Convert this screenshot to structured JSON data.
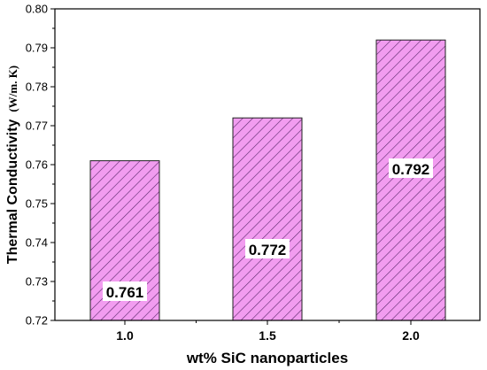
{
  "chart_data": {
    "type": "bar",
    "categories": [
      "1.0",
      "1.5",
      "2.0"
    ],
    "values": [
      0.761,
      0.772,
      0.792
    ],
    "data_labels": [
      "0.761",
      "0.772",
      "0.792"
    ],
    "title": "",
    "xlabel": "wt% SiC nanoparticles",
    "ylabel": "Thermal Conductivity",
    "ylabel_unit": "(W/m. K)",
    "ylim": [
      0.72,
      0.8
    ],
    "yticks": [
      "0.72",
      "0.73",
      "0.74",
      "0.75",
      "0.76",
      "0.77",
      "0.78",
      "0.79",
      "0.80"
    ],
    "grid": false,
    "legend": "none",
    "bar_fill_color": "#f29cf0",
    "bar_hatch_color": "#5a2a6a",
    "bar_edge_color": "#222222"
  }
}
